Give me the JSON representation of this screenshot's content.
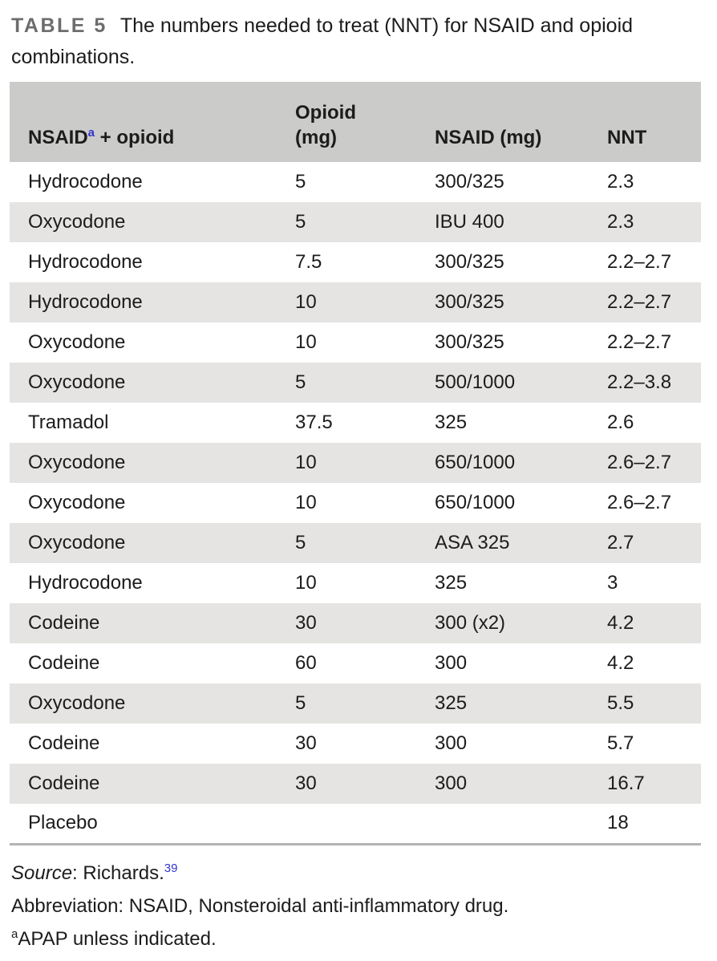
{
  "caption": {
    "label": "TABLE 5",
    "title": "The numbers needed to treat (NNT) for NSAID and opioid combinations."
  },
  "table": {
    "header": {
      "col1_name": "NSAID",
      "col1_sup": "a",
      "col1_rest": " + opioid",
      "col2_line1": "Opioid",
      "col2_line2": "(mg)",
      "col3": "NSAID (mg)",
      "col4": "NNT"
    },
    "rows": [
      {
        "drug": "Hydrocodone",
        "opioid_mg": "5",
        "nsaid_mg": "300/325",
        "nnt": "2.3"
      },
      {
        "drug": "Oxycodone",
        "opioid_mg": "5",
        "nsaid_mg": "IBU 400",
        "nnt": "2.3"
      },
      {
        "drug": "Hydrocodone",
        "opioid_mg": "7.5",
        "nsaid_mg": "300/325",
        "nnt": "2.2–2.7"
      },
      {
        "drug": "Hydrocodone",
        "opioid_mg": "10",
        "nsaid_mg": "300/325",
        "nnt": "2.2–2.7"
      },
      {
        "drug": "Oxycodone",
        "opioid_mg": "10",
        "nsaid_mg": "300/325",
        "nnt": "2.2–2.7"
      },
      {
        "drug": "Oxycodone",
        "opioid_mg": "5",
        "nsaid_mg": "500/1000",
        "nnt": "2.2–3.8"
      },
      {
        "drug": "Tramadol",
        "opioid_mg": "37.5",
        "nsaid_mg": "325",
        "nnt": "2.6"
      },
      {
        "drug": "Oxycodone",
        "opioid_mg": "10",
        "nsaid_mg": "650/1000",
        "nnt": "2.6–2.7"
      },
      {
        "drug": "Oxycodone",
        "opioid_mg": "10",
        "nsaid_mg": "650/1000",
        "nnt": "2.6–2.7"
      },
      {
        "drug": "Oxycodone",
        "opioid_mg": "5",
        "nsaid_mg": "ASA 325",
        "nnt": "2.7"
      },
      {
        "drug": "Hydrocodone",
        "opioid_mg": "10",
        "nsaid_mg": "325",
        "nnt": "3"
      },
      {
        "drug": "Codeine",
        "opioid_mg": "30",
        "nsaid_mg": "300 (x2)",
        "nnt": "4.2"
      },
      {
        "drug": "Codeine",
        "opioid_mg": "60",
        "nsaid_mg": "300",
        "nnt": "4.2"
      },
      {
        "drug": "Oxycodone",
        "opioid_mg": "5",
        "nsaid_mg": "325",
        "nnt": "5.5"
      },
      {
        "drug": "Codeine",
        "opioid_mg": "30",
        "nsaid_mg": "300",
        "nnt": "5.7"
      },
      {
        "drug": "Codeine",
        "opioid_mg": "30",
        "nsaid_mg": "300",
        "nnt": "16.7"
      },
      {
        "drug": "Placebo",
        "opioid_mg": "",
        "nsaid_mg": "",
        "nnt": "18"
      }
    ]
  },
  "footnotes": {
    "source_label": "Source",
    "source_rest": ": Richards.",
    "source_ref": "39",
    "abbreviation": "Abbreviation: NSAID, Nonsteroidal anti-inflammatory drug.",
    "footnote_marker": "a",
    "footnote_text": "APAP unless indicated."
  },
  "colors": {
    "header_bg": "#cbcbc9",
    "row_alt_bg": "#e5e4e2",
    "border": "#b4b3b1",
    "label_gray": "#6d6d6d",
    "link_blue": "#3232cd",
    "text": "#1c1c1c"
  }
}
